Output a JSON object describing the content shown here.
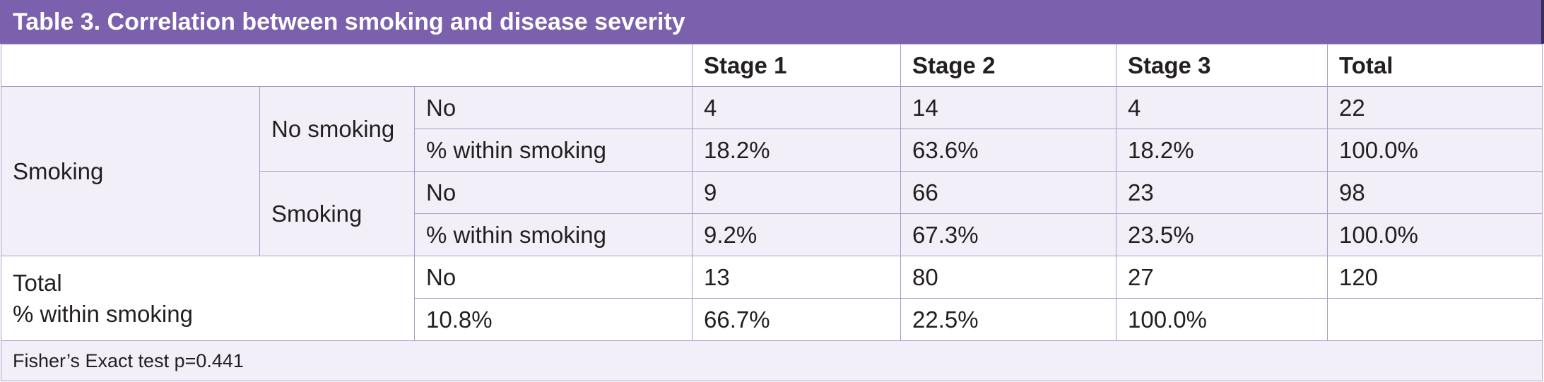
{
  "title": "Table 3. Correlation between smoking and disease severity",
  "columns": [
    "Stage 1",
    "Stage 2",
    "Stage 3",
    "Total"
  ],
  "smoking_label": "Smoking",
  "groups": [
    {
      "label": "No smoking",
      "rows": [
        {
          "label": "No",
          "values": [
            "4",
            "14",
            "4",
            "22"
          ]
        },
        {
          "label": "% within smoking",
          "values": [
            "18.2%",
            "63.6%",
            "18.2%",
            "100.0%"
          ]
        }
      ]
    },
    {
      "label": "Smoking",
      "rows": [
        {
          "label": "No",
          "values": [
            "9",
            "66",
            "23",
            "98"
          ]
        },
        {
          "label": "% within smoking",
          "values": [
            "9.2%",
            "67.3%",
            "23.5%",
            "100.0%"
          ]
        }
      ]
    }
  ],
  "total": {
    "label_line1": "Total",
    "label_line2": "% within smoking",
    "rows": [
      {
        "label": "No",
        "values": [
          "13",
          "80",
          "27",
          "120"
        ]
      },
      {
        "label": "10.8%",
        "values": [
          "66.7%",
          "22.5%",
          "100.0%",
          ""
        ]
      }
    ]
  },
  "footnote": "Fisher’s Exact test p=0.441",
  "colors": {
    "title_bg": "#7a60ad",
    "row_bg": "#f3eff9",
    "border": "#a89cc9"
  }
}
